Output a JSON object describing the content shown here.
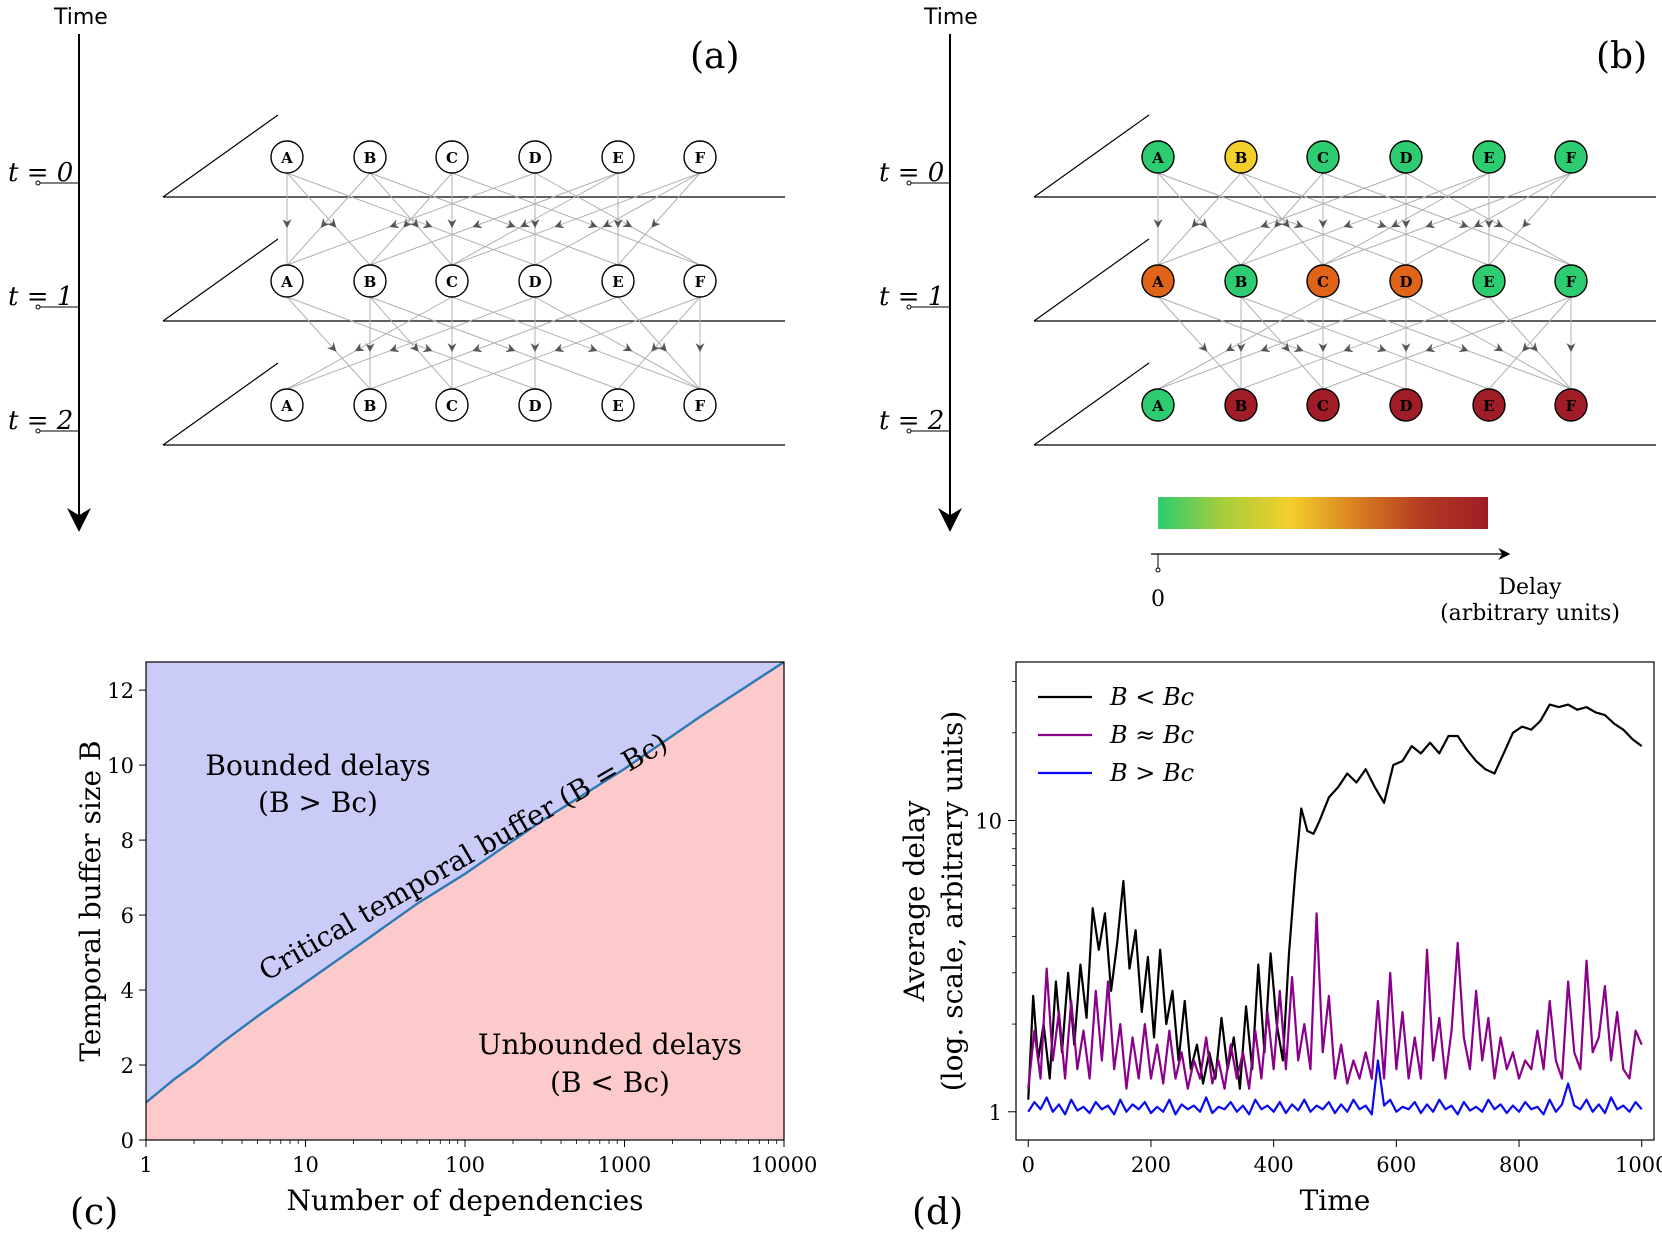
{
  "panel_a": {
    "label": "(a)",
    "time_axis_label": "Time",
    "time_labels": [
      "t = 0",
      "t = 1",
      "t = 2"
    ],
    "node_labels": [
      "A",
      "B",
      "C",
      "D",
      "E",
      "F"
    ]
  },
  "panel_b": {
    "label": "(b)",
    "time_axis_label": "Time",
    "time_labels": [
      "t = 0",
      "t = 1",
      "t = 2"
    ],
    "node_labels": [
      "A",
      "B",
      "C",
      "D",
      "E",
      "F"
    ],
    "node_delay_levels": [
      [
        "low",
        "medium",
        "low",
        "low",
        "low",
        "low"
      ],
      [
        "high",
        "low",
        "high",
        "high",
        "low",
        "low"
      ],
      [
        "low",
        "max",
        "max",
        "max",
        "max",
        "max"
      ]
    ],
    "delay_colors": {
      "low": "#2ecc71",
      "medium": "#f4cf2c",
      "high": "#e06417",
      "max": "#a01c27"
    },
    "colorbar": {
      "gradient": [
        "#2ecc71",
        "#a8cd3a",
        "#f4cf2c",
        "#d9801f",
        "#b33b22",
        "#a01c27"
      ],
      "zero_label": "0",
      "axis_label_line1": "Delay",
      "axis_label_line2": "(arbitrary units)"
    }
  },
  "panel_c": {
    "label": "(c)"
  },
  "panel_d": {
    "label": "(d)"
  },
  "chart_data": [
    {
      "type": "area",
      "title": "",
      "xlabel": "Number of dependencies",
      "ylabel": "Temporal buffer size B",
      "x_scale": "log",
      "xlim": [
        1,
        10000
      ],
      "ylim": [
        0,
        12.75
      ],
      "xticks": [
        "1",
        "10",
        "100",
        "1000",
        "10000"
      ],
      "yticks": [
        "0",
        "2",
        "4",
        "6",
        "8",
        "10",
        "12"
      ],
      "series": [
        {
          "name": "Critical temporal buffer (B = Bc)",
          "x": [
            1,
            1.5,
            2,
            3,
            5,
            10,
            20,
            50,
            100,
            300,
            1000,
            3000,
            10000
          ],
          "values": [
            1.0,
            1.62,
            2.0,
            2.6,
            3.3,
            4.2,
            5.1,
            6.3,
            7.1,
            8.5,
            9.9,
            11.3,
            12.75
          ]
        }
      ],
      "regions": [
        {
          "name": "Bounded delays",
          "condition": "(B > Bc)",
          "color": "#cbcbf7"
        },
        {
          "name": "Unbounded delays",
          "condition": "(B < Bc)",
          "color": "#fccaca"
        }
      ],
      "line_color": "#2b78b7",
      "annotations": [
        "Critical temporal buffer (B = Bc)",
        "Bounded delays",
        "(B > Bc)",
        "Unbounded delays",
        "(B < Bc)"
      ]
    },
    {
      "type": "line",
      "title": "",
      "xlabel": "Time",
      "ylabel": "Average delay",
      "ylabel_line2": "(log. scale, arbitrary units)",
      "y_scale": "log",
      "xlim": [
        -20,
        1020
      ],
      "ylim": [
        0.8,
        35
      ],
      "xticks": [
        "0",
        "200",
        "400",
        "600",
        "800",
        "1000"
      ],
      "yticks": [
        "1",
        "10"
      ],
      "legend_position": "top-left",
      "series": [
        {
          "name": "B < Bc",
          "color": "#000000",
          "x": [
            0,
            8,
            16,
            25,
            35,
            45,
            55,
            65,
            75,
            85,
            95,
            105,
            115,
            125,
            135,
            145,
            155,
            165,
            175,
            185,
            195,
            205,
            215,
            225,
            235,
            245,
            255,
            265,
            275,
            285,
            295,
            305,
            315,
            325,
            335,
            345,
            355,
            365,
            375,
            385,
            395,
            405,
            415,
            425,
            435,
            445,
            455,
            465,
            475,
            490,
            505,
            520,
            535,
            550,
            565,
            580,
            595,
            610,
            625,
            640,
            655,
            670,
            685,
            700,
            715,
            730,
            745,
            760,
            775,
            790,
            805,
            820,
            835,
            850,
            865,
            880,
            895,
            910,
            925,
            940,
            955,
            970,
            985,
            1000
          ],
          "values": [
            1.1,
            2.5,
            1.5,
            2.0,
            1.3,
            2.8,
            1.6,
            3.0,
            1.7,
            3.2,
            2.1,
            5.0,
            3.6,
            4.8,
            2.6,
            3.8,
            6.2,
            3.1,
            4.2,
            2.2,
            3.4,
            1.8,
            3.6,
            2.0,
            2.6,
            1.5,
            2.4,
            1.4,
            1.7,
            1.25,
            1.6,
            1.3,
            2.1,
            1.4,
            1.8,
            1.2,
            2.3,
            1.4,
            3.2,
            1.6,
            3.5,
            2.0,
            1.5,
            3.5,
            6.5,
            11.0,
            9.2,
            9.0,
            10.0,
            12.0,
            13.0,
            14.5,
            13.5,
            15.0,
            13.0,
            11.5,
            15.5,
            16.0,
            18.0,
            17.0,
            18.5,
            17.0,
            19.5,
            19.5,
            17.5,
            16.0,
            15.0,
            14.5,
            17.0,
            20.0,
            21.0,
            20.5,
            22.0,
            25.0,
            24.5,
            25.0,
            24.0,
            24.5,
            23.5,
            23.0,
            21.5,
            20.5,
            19.0,
            18.0
          ]
        },
        {
          "name": "B ≈ Bc",
          "color": "#8b008b",
          "x": [
            0,
            10,
            20,
            30,
            40,
            50,
            60,
            70,
            80,
            90,
            100,
            110,
            120,
            130,
            140,
            150,
            160,
            170,
            180,
            190,
            200,
            210,
            220,
            230,
            240,
            250,
            260,
            270,
            280,
            290,
            300,
            310,
            320,
            330,
            340,
            350,
            360,
            370,
            380,
            390,
            400,
            410,
            420,
            430,
            440,
            450,
            460,
            470,
            480,
            490,
            500,
            510,
            520,
            530,
            540,
            550,
            560,
            570,
            580,
            590,
            600,
            610,
            620,
            630,
            640,
            650,
            660,
            670,
            680,
            690,
            700,
            710,
            720,
            730,
            740,
            750,
            760,
            770,
            780,
            790,
            800,
            810,
            820,
            830,
            840,
            850,
            860,
            870,
            880,
            890,
            900,
            910,
            920,
            930,
            940,
            950,
            960,
            970,
            980,
            990,
            1000
          ],
          "values": [
            1.2,
            1.9,
            1.3,
            3.1,
            1.5,
            2.2,
            1.3,
            2.4,
            1.4,
            1.9,
            1.3,
            2.6,
            1.5,
            2.8,
            1.4,
            2.0,
            1.2,
            1.8,
            1.3,
            2.0,
            1.3,
            1.7,
            1.25,
            1.9,
            1.3,
            1.6,
            1.2,
            1.5,
            1.3,
            1.8,
            1.25,
            1.5,
            1.2,
            1.7,
            1.3,
            1.6,
            1.2,
            1.9,
            1.3,
            2.2,
            1.4,
            2.6,
            1.4,
            2.9,
            1.5,
            2.0,
            1.4,
            4.8,
            1.6,
            2.5,
            1.3,
            1.7,
            1.25,
            1.5,
            1.3,
            1.6,
            1.3,
            2.4,
            1.3,
            3.0,
            1.4,
            2.2,
            1.3,
            1.8,
            1.3,
            3.6,
            1.5,
            2.1,
            1.3,
            1.9,
            3.8,
            1.8,
            1.4,
            2.6,
            1.5,
            2.1,
            1.3,
            1.8,
            1.4,
            1.6,
            1.3,
            1.5,
            1.4,
            1.9,
            1.4,
            2.4,
            1.5,
            1.3,
            2.8,
            1.6,
            1.4,
            3.3,
            1.6,
            1.8,
            2.7,
            1.5,
            2.2,
            1.4,
            1.3,
            1.9,
            1.7
          ]
        },
        {
          "name": "B > Bc",
          "color": "#0a0af0",
          "x": [
            0,
            10,
            20,
            30,
            40,
            50,
            60,
            70,
            80,
            90,
            100,
            110,
            120,
            130,
            140,
            150,
            160,
            170,
            180,
            190,
            200,
            210,
            220,
            230,
            240,
            250,
            260,
            270,
            280,
            290,
            300,
            310,
            320,
            330,
            340,
            350,
            360,
            370,
            380,
            390,
            400,
            410,
            420,
            430,
            440,
            450,
            460,
            470,
            480,
            490,
            500,
            510,
            520,
            530,
            540,
            550,
            560,
            570,
            580,
            590,
            600,
            610,
            620,
            630,
            640,
            650,
            660,
            670,
            680,
            690,
            700,
            710,
            720,
            730,
            740,
            750,
            760,
            770,
            780,
            790,
            800,
            810,
            820,
            830,
            840,
            850,
            860,
            870,
            880,
            890,
            900,
            910,
            920,
            930,
            940,
            950,
            960,
            970,
            980,
            990,
            1000
          ],
          "values": [
            1.0,
            1.08,
            1.02,
            1.12,
            1.0,
            1.06,
            0.98,
            1.1,
            1.01,
            1.04,
            0.99,
            1.08,
            1.02,
            1.05,
            0.98,
            1.1,
            1.0,
            1.06,
            1.02,
            1.08,
            0.99,
            1.04,
            1.0,
            1.1,
            0.98,
            1.06,
            1.02,
            1.05,
            1.0,
            1.12,
            0.99,
            1.04,
            1.02,
            1.08,
            1.0,
            1.05,
            0.98,
            1.1,
            1.02,
            1.05,
            1.0,
            1.08,
            0.99,
            1.06,
            1.01,
            1.1,
            1.0,
            1.05,
            1.02,
            1.08,
            0.99,
            1.06,
            1.0,
            1.1,
            1.02,
            1.05,
            0.98,
            1.5,
            1.05,
            1.1,
            1.0,
            1.04,
            1.02,
            1.08,
            0.99,
            1.06,
            1.0,
            1.1,
            1.02,
            1.05,
            0.98,
            1.08,
            1.01,
            1.04,
            1.0,
            1.1,
            1.02,
            1.06,
            0.99,
            1.05,
            1.0,
            1.08,
            1.02,
            1.04,
            0.98,
            1.1,
            1.0,
            1.06,
            1.25,
            1.05,
            1.02,
            1.1,
            1.0,
            1.06,
            0.99,
            1.12,
            1.02,
            1.05,
            1.0,
            1.08,
            1.02
          ]
        }
      ]
    }
  ]
}
